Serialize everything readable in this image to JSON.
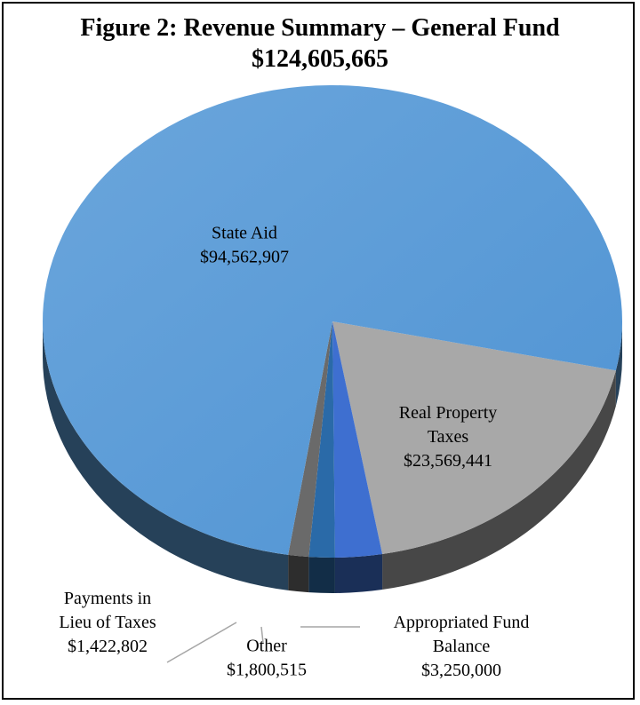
{
  "chart_data": {
    "type": "pie",
    "title": "Figure 2: Revenue Summary – General Fund",
    "subtitle": "$124,605,665",
    "slices": [
      {
        "label": "Real Property Taxes",
        "value_text": "$23,569,441",
        "value": 23569441,
        "color": "#a8a8a8",
        "label_lines": [
          "Real Property",
          "Taxes",
          "$23,569,441"
        ]
      },
      {
        "label": "Appropriated Fund Balance",
        "value_text": "$3,250,000",
        "value": 3250000,
        "color": "#3e6fd0",
        "label_lines": [
          "Appropriated Fund",
          "Balance",
          "$3,250,000"
        ]
      },
      {
        "label": "Other",
        "value_text": "$1,800,515",
        "value": 1800515,
        "color": "#2a6aa8",
        "label_lines": [
          "Other",
          "$1,800,515"
        ]
      },
      {
        "label": "Payments in Lieu of Taxes",
        "value_text": "$1,422,802",
        "value": 1422802,
        "color": "#6a6a6a",
        "label_lines": [
          "Payments in",
          "Lieu of Taxes",
          "$1,422,802"
        ]
      },
      {
        "label": "State Aid",
        "value_text": "$94,562,907",
        "value": 94562907,
        "color": "#5b9bd5",
        "label_lines": [
          "State Aid",
          "$94,562,907"
        ]
      }
    ],
    "legend": "none"
  }
}
